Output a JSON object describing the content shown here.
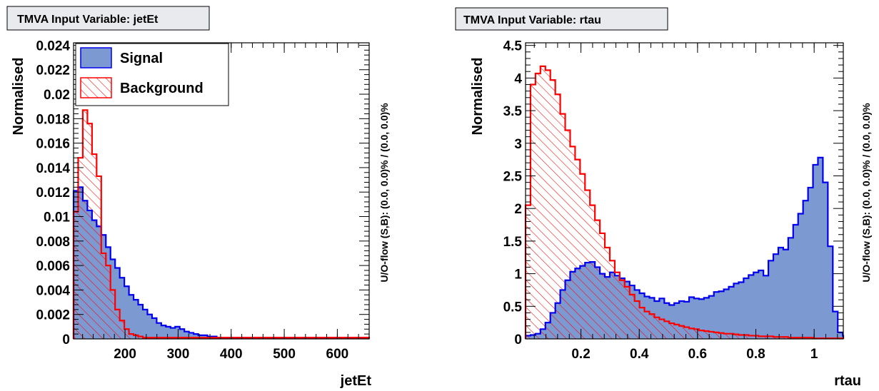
{
  "chart_data": [
    {
      "type": "histogram",
      "title": "TMVA Input Variable: jetEt",
      "xlabel": "jetEt",
      "ylabel": "Normalised",
      "right_label": "U/O-flow (S,B): (0.0, 0.0)% / (0.0, 0.0)%",
      "xlim": [
        103,
        660
      ],
      "ylim": [
        0,
        0.0242
      ],
      "xticks": [
        200,
        300,
        400,
        500,
        600
      ],
      "xtick_labels": [
        "200",
        "300",
        "400",
        "500",
        "600"
      ],
      "yticks": [
        0,
        0.002,
        0.004,
        0.006,
        0.008,
        0.01,
        0.012,
        0.014,
        0.016,
        0.018,
        0.02,
        0.022,
        0.024
      ],
      "ytick_labels": [
        "0",
        "0.002",
        "0.004",
        "0.006",
        "0.008",
        "0.01",
        "0.012",
        "0.014",
        "0.016",
        "0.018",
        "0.02",
        "0.022",
        "0.024"
      ],
      "legend": {
        "position": "top-left",
        "entries": [
          "Signal",
          "Background"
        ]
      },
      "bin_edges_start": 103,
      "bin_width": 8.7,
      "series": [
        {
          "name": "Signal",
          "values": [
            0.0121,
            0.0124,
            0.0113,
            0.0105,
            0.0097,
            0.0092,
            0.0085,
            0.0075,
            0.0065,
            0.0058,
            0.005,
            0.0043,
            0.0036,
            0.0032,
            0.0028,
            0.0024,
            0.002,
            0.0017,
            0.0013,
            0.0011,
            0.001,
            0.0009,
            0.001,
            0.0008,
            0.0006,
            0.0005,
            0.0004,
            0.0003,
            0.0003,
            0.0002,
            0.0002,
            0.0001,
            0.0001,
            0.0001,
            0.0001,
            0.0001,
            0.0001,
            0.0001,
            0.0001,
            0.0001,
            0.0001,
            0.0001,
            0.0001,
            0.0001,
            0.0001,
            0.0001,
            0.0001,
            0.0001,
            0.0001,
            0.0001,
            0.0001,
            0.0001,
            0.0001,
            0.0001,
            0.0001,
            0.0001,
            0.0001,
            0.0001,
            0.0001,
            0.0001,
            0.0001,
            0.0001,
            0.0001,
            0.0001
          ]
        },
        {
          "name": "Background",
          "values": [
            0.0104,
            0.0148,
            0.0187,
            0.0176,
            0.0151,
            0.0133,
            0.007,
            0.006,
            0.004,
            0.0024,
            0.0015,
            0.0008,
            0.0004,
            0.0003,
            0.0002,
            0.0001,
            0.0001,
            0.0001,
            0.0001,
            0.0001,
            0.0001,
            0.0001,
            0.0001,
            0.0001,
            0.0001,
            0.0001,
            0.0001,
            0.0001,
            0.0001,
            0.0001,
            0.0001,
            0.0001,
            0.0001,
            0.0001,
            0.0001,
            0.0001,
            0.0001,
            0.0001,
            0.0001,
            0.0001,
            0.0001,
            0.0001,
            0.0001,
            0.0001,
            0.0001,
            0.0001,
            0.0001,
            0.0001,
            0.0001,
            0.0001,
            0.0001,
            0.0001,
            0.0001,
            0.0001,
            0.0001,
            0.0001,
            0.0001,
            0.0001,
            0.0001,
            0.0001,
            0.0001,
            0.0001,
            0.0001,
            0.0001
          ]
        }
      ]
    },
    {
      "type": "histogram",
      "title": "TMVA Input Variable: rtau",
      "xlabel": "rtau",
      "ylabel": "Normalised",
      "right_label": "U/O-flow (S,B): (0.0, 0.0)% / (0.0, 0.0)%",
      "xlim": [
        0.01,
        1.1
      ],
      "ylim": [
        0,
        4.54
      ],
      "xticks": [
        0.2,
        0.4,
        0.6,
        0.8,
        1.0
      ],
      "xtick_labels": [
        "0.2",
        "0.4",
        "0.6",
        "0.8",
        "1"
      ],
      "yticks": [
        0,
        0.5,
        1,
        1.5,
        2,
        2.5,
        3,
        3.5,
        4,
        4.5
      ],
      "ytick_labels": [
        "0",
        "0.5",
        "1",
        "1.5",
        "2",
        "2.5",
        "3",
        "3.5",
        "4",
        "4.5"
      ],
      "bin_edges_start": 0.01,
      "bin_width": 0.017,
      "series": [
        {
          "name": "Signal",
          "values": [
            0.05,
            0.06,
            0.08,
            0.15,
            0.25,
            0.4,
            0.55,
            0.75,
            0.9,
            1.03,
            1.08,
            1.12,
            1.17,
            1.18,
            1.1,
            1.0,
            0.95,
            1.02,
            0.97,
            0.93,
            0.88,
            0.82,
            0.75,
            0.7,
            0.65,
            0.63,
            0.58,
            0.62,
            0.55,
            0.52,
            0.55,
            0.58,
            0.57,
            0.64,
            0.62,
            0.61,
            0.63,
            0.66,
            0.72,
            0.73,
            0.76,
            0.8,
            0.85,
            0.87,
            0.93,
            0.98,
            1.02,
            1.05,
            0.97,
            1.2,
            1.3,
            1.4,
            1.37,
            1.55,
            1.75,
            1.92,
            2.12,
            2.32,
            2.67,
            2.78,
            2.4,
            1.42,
            0.42,
            0.1,
            0.05
          ]
        },
        {
          "name": "Background",
          "values": [
            2.05,
            3.9,
            4.07,
            4.18,
            4.12,
            3.97,
            3.75,
            3.45,
            3.2,
            2.95,
            2.75,
            2.53,
            2.28,
            2.05,
            1.82,
            1.62,
            1.4,
            1.2,
            1.02,
            0.9,
            0.8,
            0.68,
            0.58,
            0.48,
            0.42,
            0.38,
            0.33,
            0.3,
            0.27,
            0.24,
            0.22,
            0.2,
            0.18,
            0.16,
            0.15,
            0.13,
            0.12,
            0.11,
            0.1,
            0.09,
            0.08,
            0.08,
            0.07,
            0.06,
            0.06,
            0.05,
            0.05,
            0.04,
            0.04,
            0.04,
            0.03,
            0.03,
            0.03,
            0.02,
            0.02,
            0.02,
            0.02,
            0.02,
            0.01,
            0.01,
            0.01,
            0.01,
            0.01,
            0.01,
            0.01
          ]
        }
      ]
    }
  ],
  "colors": {
    "signal_fill": "#7d99d1",
    "signal_line": "#0000ee",
    "background_line": "#ff0000",
    "title_box_fill": "#e8eaed"
  }
}
